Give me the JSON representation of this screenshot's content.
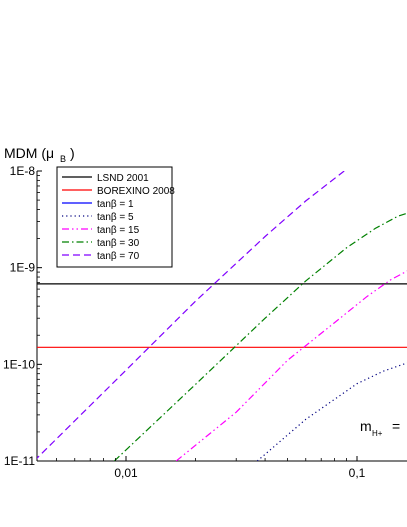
{
  "chart_data": {
    "type": "line",
    "x_scale": "log",
    "y_scale": "log",
    "xlim": [
      0.004,
      0.17
    ],
    "ylim": [
      1e-11,
      1e-08
    ],
    "ylabel": "MDM (μ",
    "ylabel_sub": "B",
    "ylabel_close": ")",
    "xlabel_main": "m",
    "xlabel_sub": "H+",
    "xlabel_tail": "=",
    "x_ticks": [
      {
        "value": 0.01,
        "label": "0,01"
      },
      {
        "value": 0.1,
        "label": "0,1"
      }
    ],
    "y_ticks": [
      {
        "value": 1e-08,
        "label": "1E-8"
      },
      {
        "value": 1e-09,
        "label": "1E-9"
      },
      {
        "value": 1e-10,
        "label": "1E-10"
      },
      {
        "value": 1e-11,
        "label": "1E-11"
      }
    ],
    "legend_position": "top-left",
    "series": [
      {
        "name": "LSND 2001",
        "color": "#000000",
        "dash": "solid",
        "x": [
          0.004,
          0.17
        ],
        "y": [
          6.8e-10,
          6.8e-10
        ]
      },
      {
        "name": "BOREXINO 2008",
        "color": "#ff0000",
        "dash": "solid",
        "x": [
          0.004,
          0.17
        ],
        "y": [
          1.5e-10,
          1.5e-10
        ]
      },
      {
        "name": "tanβ = 1",
        "color": "#0000ff",
        "dash": "solid",
        "x": [],
        "y": []
      },
      {
        "name": "tanβ = 5",
        "color": "#000080",
        "dash": "dotted",
        "x": [
          0.037,
          0.06,
          0.1,
          0.13,
          0.17
        ],
        "y": [
          1e-11,
          2.7e-11,
          6.3e-11,
          8.5e-11,
          1.06e-10
        ]
      },
      {
        "name": "tanβ = 15",
        "color": "#ff00ff",
        "dash": "dashdotdot",
        "x": [
          0.0165,
          0.03,
          0.05,
          0.08,
          0.11,
          0.14,
          0.17
        ],
        "y": [
          1e-11,
          3.2e-11,
          1.1e-10,
          2.7e-10,
          5e-10,
          7.5e-10,
          9.6e-10
        ]
      },
      {
        "name": "tanβ = 30",
        "color": "#008000",
        "dash": "dashdot",
        "x": [
          0.0089,
          0.02,
          0.04,
          0.06,
          0.09,
          0.12,
          0.15,
          0.17
        ],
        "y": [
          1e-11,
          6.2e-11,
          3e-10,
          7.3e-10,
          1.6e-09,
          2.55e-09,
          3.4e-09,
          3.75e-09
        ]
      },
      {
        "name": "tanβ = 70",
        "color": "#8000ff",
        "dash": "dashed",
        "x": [
          0.004,
          0.01,
          0.02,
          0.04,
          0.06,
          0.088
        ],
        "y": [
          1e-11,
          8.7e-11,
          4.5e-10,
          2.1e-09,
          4.9e-09,
          1e-08
        ]
      }
    ]
  }
}
